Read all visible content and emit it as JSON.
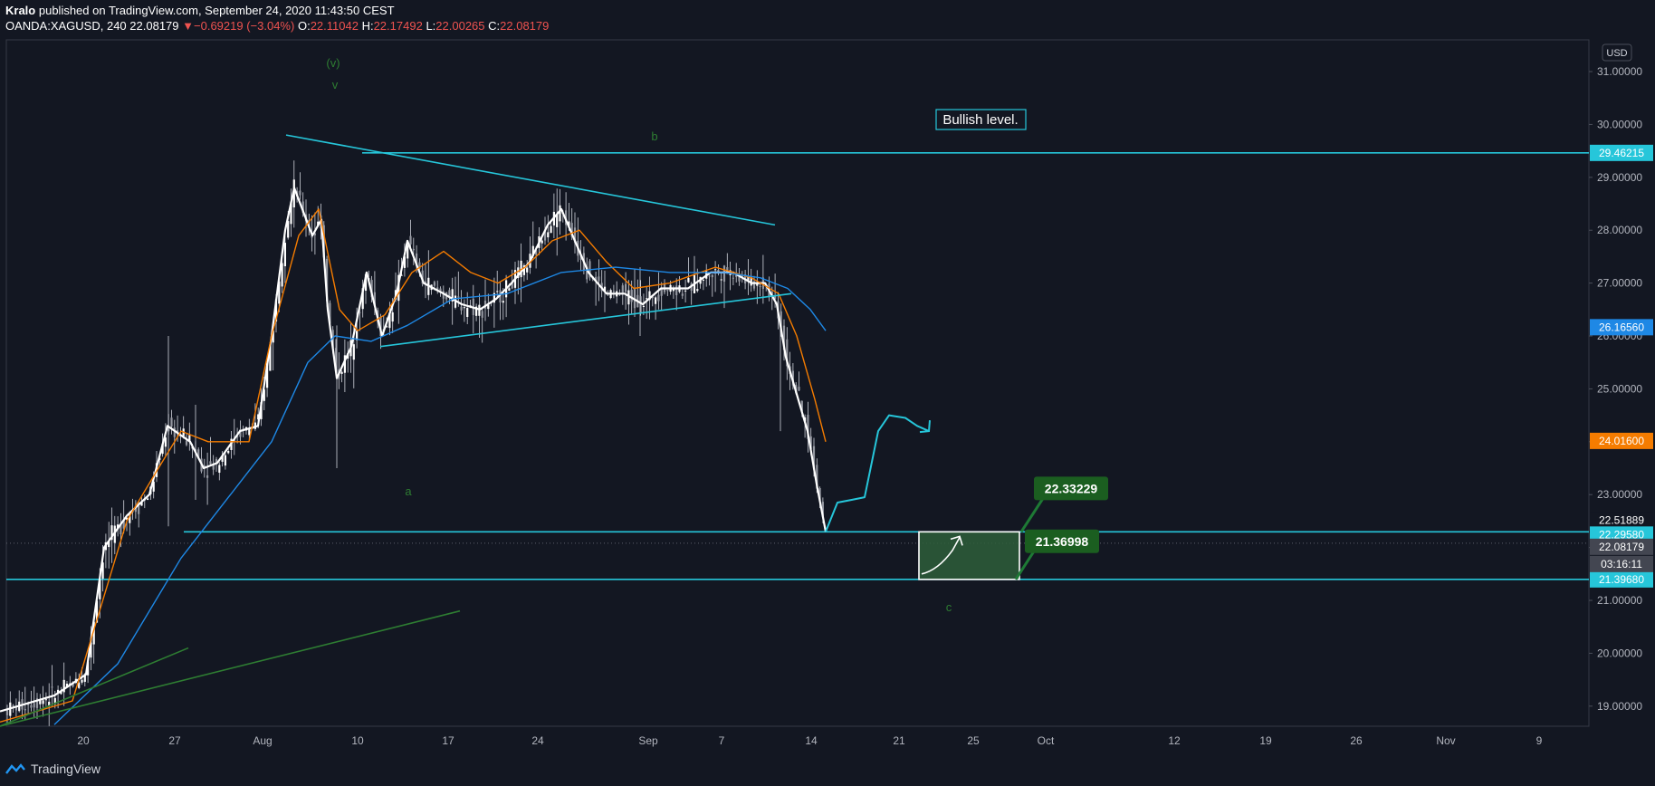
{
  "header": {
    "author": "Kralo",
    "published": "published on TradingView.com, September 24, 2020 11:43:50 CEST",
    "symbol": "OANDA:XAGUSD, 240",
    "last": "22.08179",
    "arrow": "▼",
    "change": "−0.69219 (−3.04%)",
    "o_label": "O:",
    "o_val": "22.11042",
    "h_label": "H:",
    "h_val": "22.17492",
    "l_label": "L:",
    "l_val": "22.00265",
    "c_label": "C:",
    "c_val": "22.08179"
  },
  "footer": {
    "brand": "TradingView"
  },
  "chart_data": {
    "type": "line",
    "currency_label": "USD",
    "ylim": [
      18.62,
      31.6
    ],
    "y_ticks": [
      "19.00000",
      "20.00000",
      "21.00000",
      "22.00000",
      "23.00000",
      "24.00000",
      "25.00000",
      "26.00000",
      "27.00000",
      "28.00000",
      "29.00000",
      "30.00000",
      "31.00000"
    ],
    "x_ticks": [
      "20",
      "27",
      "Aug",
      "10",
      "17",
      "24",
      "Sep",
      "7",
      "14",
      "21",
      "25",
      "Oct",
      "12",
      "19",
      "26",
      "Nov",
      "9"
    ],
    "price_tags": [
      {
        "value": 29.46215,
        "text": "29.46215",
        "color": "#26c6da"
      },
      {
        "value": 26.1656,
        "text": "26.16560",
        "color": "#1e88e5"
      },
      {
        "value": 24.016,
        "text": "24.01600",
        "color": "#f57c00"
      },
      {
        "value": 22.51889,
        "text": "22.51889",
        "color": "#131722"
      },
      {
        "value": 22.2958,
        "text": "22.29580",
        "color": "#26c6da"
      },
      {
        "value": 22.08179,
        "text": "22.08179",
        "color": "#434651"
      },
      {
        "value": 21.3968,
        "text": "21.39680",
        "color": "#26c6da"
      }
    ],
    "countdown": "03:16:11",
    "horizontal_levels": [
      29.46215,
      22.2958,
      21.3968
    ],
    "box_labels": [
      {
        "text": "22.33229",
        "value": 22.33229
      },
      {
        "text": "21.36998",
        "value": 21.36998
      }
    ],
    "annotation": "Bullish level.",
    "wave_labels": [
      "(v)",
      "v",
      "b",
      "a",
      "c"
    ],
    "series": [
      {
        "name": "",
        "color": "#ffffff",
        "points": [
          [
            0,
            18.9
          ],
          [
            60,
            19.2
          ],
          [
            95,
            19.6
          ],
          [
            115,
            22.0
          ],
          [
            140,
            22.6
          ],
          [
            165,
            23.0
          ],
          [
            185,
            24.3
          ],
          [
            210,
            24.0
          ],
          [
            225,
            23.5
          ],
          [
            240,
            23.6
          ],
          [
            265,
            24.2
          ],
          [
            285,
            24.3
          ],
          [
            300,
            26.0
          ],
          [
            315,
            28.0
          ],
          [
            325,
            28.8
          ],
          [
            345,
            27.9
          ],
          [
            355,
            28.2
          ],
          [
            362,
            26.5
          ],
          [
            372,
            25.2
          ],
          [
            388,
            25.8
          ],
          [
            405,
            27.2
          ],
          [
            422,
            26.0
          ],
          [
            438,
            26.8
          ],
          [
            450,
            27.8
          ],
          [
            468,
            27.0
          ],
          [
            490,
            26.8
          ],
          [
            510,
            26.6
          ],
          [
            530,
            26.5
          ],
          [
            548,
            26.7
          ],
          [
            565,
            27.0
          ],
          [
            585,
            27.4
          ],
          [
            605,
            28.1
          ],
          [
            620,
            28.4
          ],
          [
            635,
            27.8
          ],
          [
            650,
            27.2
          ],
          [
            670,
            26.8
          ],
          [
            690,
            26.8
          ],
          [
            710,
            26.6
          ],
          [
            730,
            26.9
          ],
          [
            760,
            26.9
          ],
          [
            785,
            27.2
          ],
          [
            810,
            27.2
          ],
          [
            830,
            27.0
          ],
          [
            845,
            27.0
          ],
          [
            858,
            26.6
          ],
          [
            868,
            25.6
          ],
          [
            880,
            24.9
          ],
          [
            892,
            24.2
          ],
          [
            902,
            23.2
          ],
          [
            912,
            22.3
          ]
        ]
      },
      {
        "name": "",
        "color": "#f57c00",
        "points": [
          [
            0,
            18.7
          ],
          [
            80,
            19.1
          ],
          [
            110,
            20.8
          ],
          [
            140,
            22.5
          ],
          [
            175,
            23.5
          ],
          [
            200,
            24.2
          ],
          [
            230,
            24.0
          ],
          [
            275,
            24.0
          ],
          [
            300,
            26.0
          ],
          [
            330,
            27.9
          ],
          [
            352,
            28.4
          ],
          [
            375,
            26.5
          ],
          [
            395,
            26.1
          ],
          [
            425,
            26.4
          ],
          [
            455,
            27.2
          ],
          [
            490,
            27.6
          ],
          [
            520,
            27.2
          ],
          [
            550,
            27.0
          ],
          [
            580,
            27.3
          ],
          [
            610,
            27.8
          ],
          [
            640,
            28.0
          ],
          [
            670,
            27.4
          ],
          [
            700,
            26.9
          ],
          [
            740,
            27.0
          ],
          [
            790,
            27.3
          ],
          [
            830,
            27.1
          ],
          [
            860,
            26.8
          ],
          [
            880,
            26.0
          ],
          [
            900,
            24.8
          ],
          [
            912,
            24.0
          ]
        ]
      },
      {
        "name": "",
        "color": "#1e88e5",
        "points": [
          [
            60,
            18.65
          ],
          [
            130,
            19.8
          ],
          [
            200,
            21.8
          ],
          [
            250,
            22.9
          ],
          [
            300,
            24.0
          ],
          [
            340,
            25.5
          ],
          [
            370,
            26.0
          ],
          [
            410,
            25.9
          ],
          [
            450,
            26.2
          ],
          [
            500,
            26.7
          ],
          [
            560,
            26.8
          ],
          [
            620,
            27.2
          ],
          [
            680,
            27.3
          ],
          [
            740,
            27.2
          ],
          [
            800,
            27.2
          ],
          [
            840,
            27.1
          ],
          [
            870,
            26.9
          ],
          [
            895,
            26.5
          ],
          [
            912,
            26.1
          ]
        ]
      }
    ],
    "trend_lines": [
      {
        "from": [
          316,
          29.8
        ],
        "to": [
          856,
          28.1
        ],
        "color": "#26c6da"
      },
      {
        "from": [
          420,
          25.8
        ],
        "to": [
          874,
          26.8
        ],
        "color": "#26c6da"
      },
      {
        "from": [
          0,
          18.62
        ],
        "to": [
          508,
          20.8
        ],
        "color": "#2e7d32"
      },
      {
        "from": [
          0,
          18.62
        ],
        "to": [
          208,
          20.1
        ],
        "color": "#2e7d32"
      }
    ],
    "projection": {
      "color": "#26c6da",
      "points": [
        [
          912,
          22.3
        ],
        [
          925,
          22.85
        ],
        [
          940,
          22.9
        ],
        [
          955,
          22.95
        ],
        [
          970,
          24.2
        ],
        [
          982,
          24.5
        ],
        [
          1000,
          24.45
        ],
        [
          1013,
          24.3
        ],
        [
          1026,
          24.2
        ]
      ]
    }
  }
}
